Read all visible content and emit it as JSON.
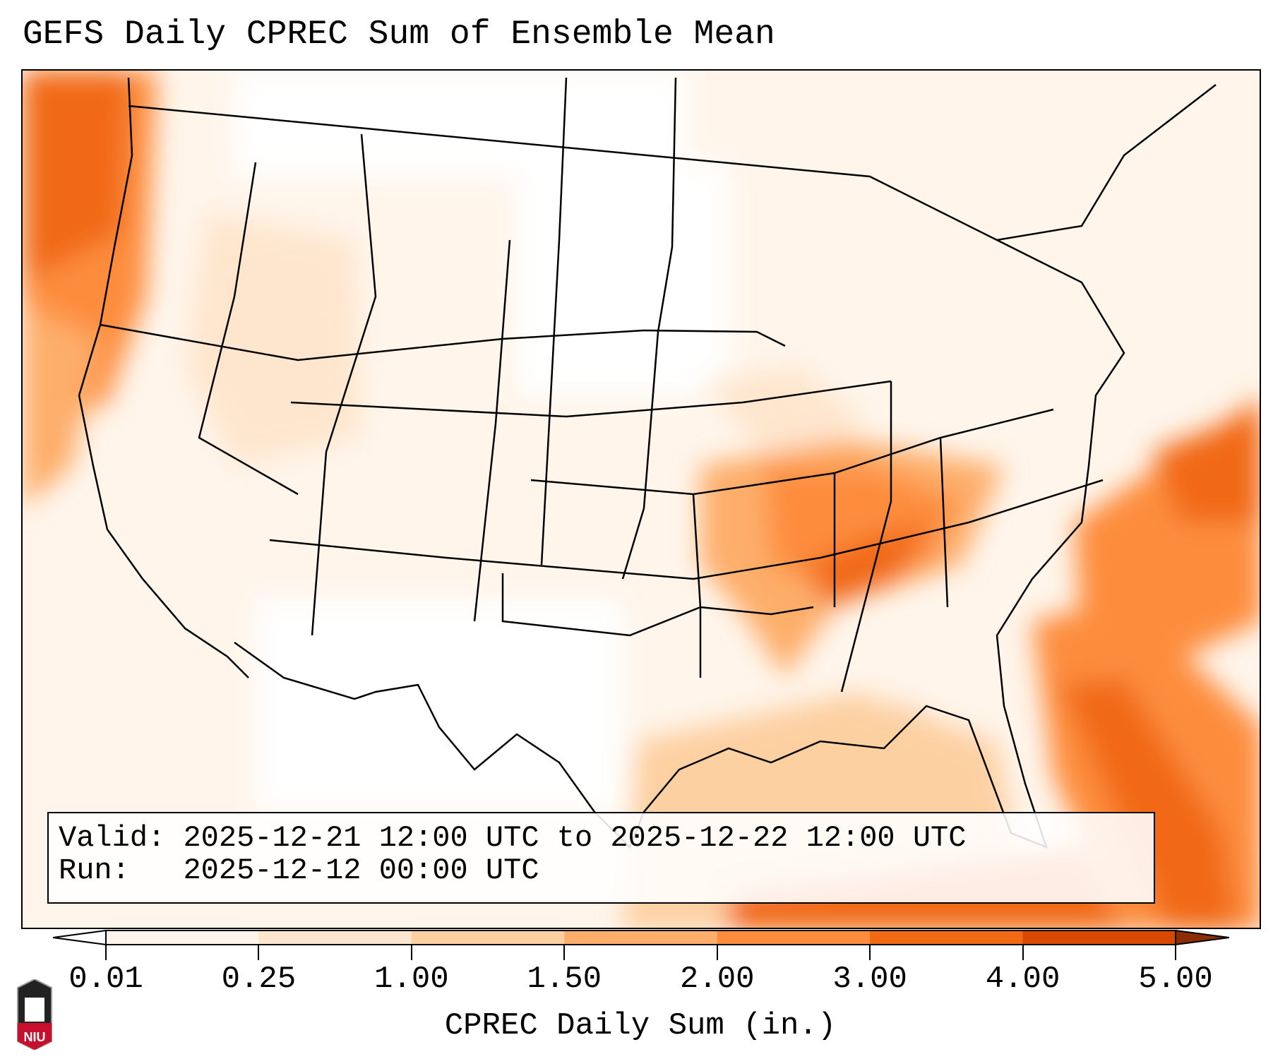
{
  "title": "GEFS Daily CPREC Sum of Ensemble Mean",
  "info": {
    "valid_label": "Valid:",
    "valid_value": "2025-12-21 12:00 UTC to 2025-12-22 12:00 UTC",
    "run_label": "Run:  ",
    "run_value": "2025-12-12 00:00 UTC"
  },
  "colorbar": {
    "label": "CPREC Daily Sum (in.)",
    "ticks": [
      "0.01",
      "0.25",
      "1.00",
      "1.50",
      "2.00",
      "3.00",
      "4.00",
      "5.00"
    ],
    "colors": [
      "#fff5eb",
      "#fee6ce",
      "#fdd0a2",
      "#fdae6b",
      "#fd8d3c",
      "#f16913",
      "#d94801",
      "#8c2d04"
    ],
    "under_color": "#ffffff",
    "over_color": "#8c2d04"
  },
  "logo": {
    "text": "NIU"
  }
}
